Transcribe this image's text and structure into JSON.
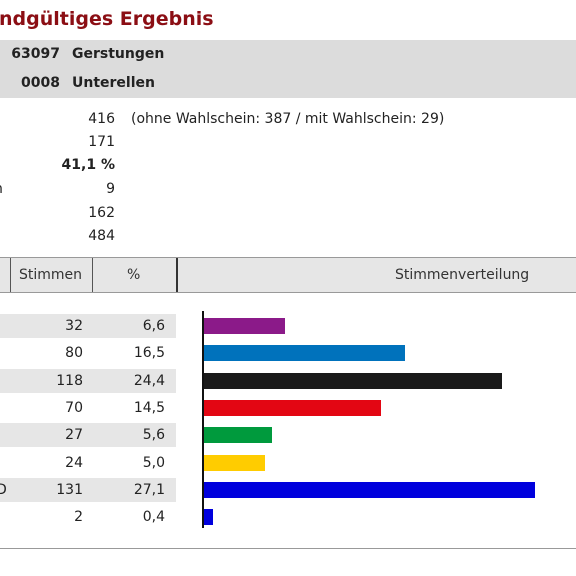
{
  "header": {
    "title": "Endgültiges Ergebnis"
  },
  "location": {
    "municipality_number": "63097",
    "municipality_name": "Gerstungen",
    "district_number": "0008",
    "district_name": "Unterellen"
  },
  "stats": [
    {
      "label": "",
      "value": "416",
      "note": "(ohne Wahlschein: 387 / mit Wahlschein: 29)",
      "bold": false
    },
    {
      "label": "",
      "value": "171",
      "note": "",
      "bold": false
    },
    {
      "label": "",
      "value": "41,1 %",
      "note": "",
      "bold": true
    },
    {
      "label": "n",
      "value": "9",
      "note": "",
      "bold": false
    },
    {
      "label": "",
      "value": "162",
      "note": "",
      "bold": false
    },
    {
      "label": "",
      "value": "484",
      "note": "",
      "bold": false
    }
  ],
  "table": {
    "col_votes": "Stimmen",
    "col_pct": "%",
    "col_chart": "Stimmenverteilung"
  },
  "chart_data": {
    "type": "bar",
    "orientation": "horizontal",
    "categories": [
      "",
      "",
      "",
      "",
      "",
      "",
      "D",
      ""
    ],
    "votes": [
      32,
      80,
      118,
      70,
      27,
      24,
      131,
      2
    ],
    "values": [
      6.6,
      16.5,
      24.4,
      14.5,
      5.6,
      5.0,
      27.1,
      0.4
    ],
    "value_labels": [
      "6,6",
      "16,5",
      "24,4",
      "14,5",
      "5,6",
      "5,0",
      "27,1",
      "0,4"
    ],
    "colors": [
      "#8b1a89",
      "#0072bc",
      "#1a1a1a",
      "#e30613",
      "#009a3d",
      "#ffcc00",
      "#0000dd",
      "#0000dd"
    ],
    "title": "Stimmenverteilung"
  }
}
